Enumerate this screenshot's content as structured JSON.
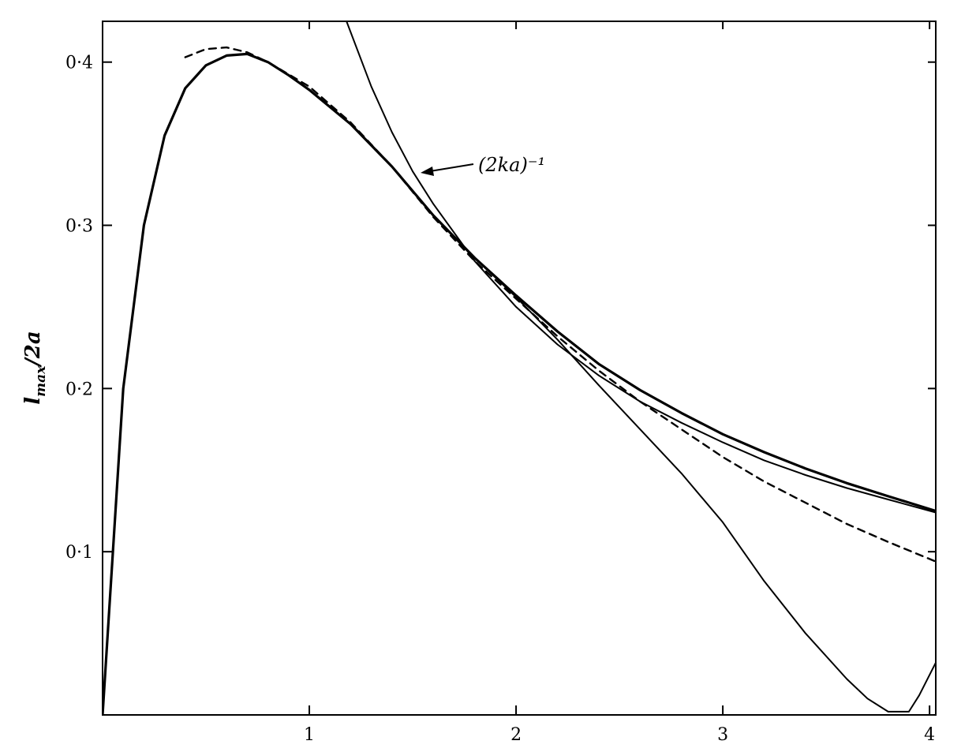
{
  "chart_data": {
    "type": "line",
    "title": "",
    "xlabel": "",
    "ylabel": "l_max/2a",
    "ylabel_parts": {
      "base": "l",
      "sub": "max",
      "rest": "/2a"
    },
    "xlim": [
      0,
      4.03
    ],
    "ylim": [
      0,
      0.425
    ],
    "grid": false,
    "x_ticks": [
      1,
      2,
      3,
      4
    ],
    "x_tick_labels": [
      "1",
      "2",
      "3",
      "4"
    ],
    "y_ticks": [
      0.1,
      0.2,
      0.3,
      0.4
    ],
    "y_tick_labels": [
      "0·1",
      "0·2",
      "0·3",
      "0·4"
    ],
    "series": [
      {
        "style": "solid-bold",
        "x": [
          0.0,
          0.1,
          0.2,
          0.3,
          0.4,
          0.5,
          0.6,
          0.7,
          0.8,
          0.9,
          1.0,
          1.2,
          1.4,
          1.6,
          1.8,
          2.0,
          2.2,
          2.4,
          2.6,
          2.8,
          3.0,
          3.2,
          3.4,
          3.6,
          3.8,
          4.03
        ],
        "y": [
          0.0,
          0.2,
          0.3,
          0.355,
          0.384,
          0.398,
          0.404,
          0.405,
          0.4,
          0.392,
          0.383,
          0.362,
          0.336,
          0.306,
          0.28,
          0.257,
          0.235,
          0.215,
          0.199,
          0.185,
          0.172,
          0.161,
          0.151,
          0.142,
          0.134,
          0.125
        ]
      },
      {
        "style": "dashed",
        "x": [
          0.4,
          0.5,
          0.6,
          0.7,
          0.8,
          1.0,
          1.2,
          1.4,
          1.6,
          1.8,
          2.0,
          2.2,
          2.4,
          2.6,
          2.8,
          3.0,
          3.2,
          3.4,
          3.6,
          3.8,
          4.03
        ],
        "y": [
          0.403,
          0.408,
          0.409,
          0.406,
          0.4,
          0.385,
          0.363,
          0.336,
          0.305,
          0.278,
          0.255,
          0.232,
          0.211,
          0.192,
          0.175,
          0.158,
          0.143,
          0.13,
          0.117,
          0.106,
          0.094
        ]
      },
      {
        "style": "solid-thin",
        "x": [
          0.0,
          0.1,
          0.2,
          0.3,
          0.4,
          0.5,
          0.6,
          0.7,
          0.8,
          0.9,
          1.0,
          1.2,
          1.4,
          1.6,
          1.8,
          2.0,
          2.2,
          2.4,
          2.6,
          2.8,
          3.0,
          3.2,
          3.4,
          3.6,
          3.7,
          3.8,
          3.9,
          3.95,
          4.03
        ],
        "y": [
          0.0,
          0.2,
          0.3,
          0.355,
          0.384,
          0.398,
          0.404,
          0.405,
          0.4,
          0.392,
          0.383,
          0.362,
          0.336,
          0.306,
          0.28,
          0.256,
          0.23,
          0.202,
          0.175,
          0.148,
          0.118,
          0.082,
          0.05,
          0.022,
          0.01,
          0.002,
          0.002,
          0.012,
          0.032
        ]
      },
      {
        "style": "solid-thin",
        "annotation": "(2ka)⁻¹",
        "x": [
          1.18,
          1.3,
          1.4,
          1.5,
          1.6,
          1.8,
          2.0,
          2.2,
          2.4,
          2.6,
          2.8,
          3.0,
          3.2,
          3.4,
          3.6,
          3.8,
          4.03
        ],
        "y": [
          0.425,
          0.385,
          0.357,
          0.333,
          0.313,
          0.278,
          0.25,
          0.227,
          0.208,
          0.192,
          0.179,
          0.167,
          0.156,
          0.147,
          0.139,
          0.132,
          0.124
        ]
      }
    ],
    "annotations": [
      {
        "text": "(2ka)⁻¹",
        "points_to": {
          "x": 1.53,
          "y": 0.335
        }
      }
    ]
  }
}
